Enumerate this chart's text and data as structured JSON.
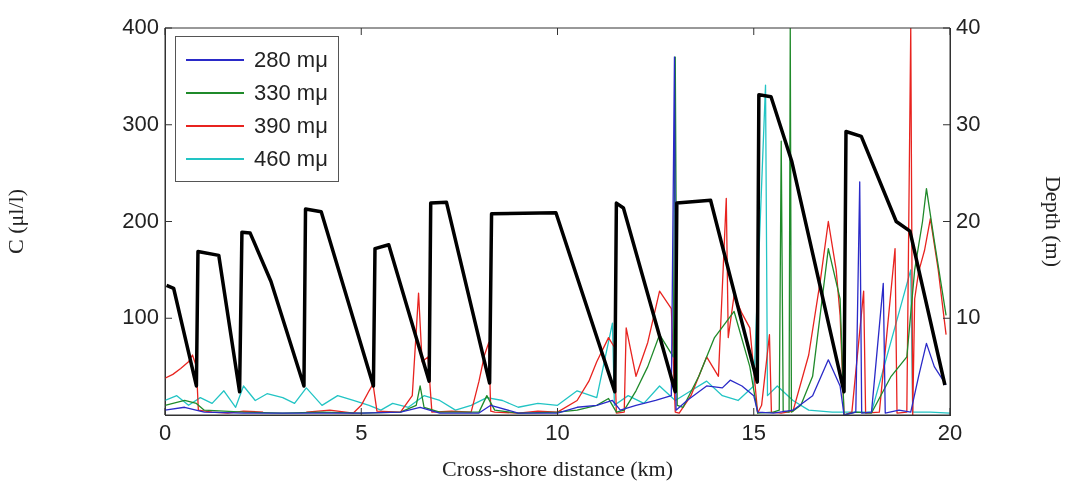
{
  "chart_data": {
    "type": "line",
    "xlabel": "Cross-shore distance (km)",
    "ylabel": "C (μl/l)",
    "y2label": "Depth (m)",
    "xlim": [
      0,
      20
    ],
    "xticks": [
      0,
      5,
      10,
      15,
      20
    ],
    "ylim": [
      0,
      400
    ],
    "yticks": [
      100,
      200,
      300,
      400
    ],
    "y2lim": [
      0,
      40
    ],
    "y2ticks": [
      10,
      20,
      30,
      40
    ],
    "legend": "top left",
    "marker": "none",
    "series": [
      {
        "name": "280 mμ",
        "color": "#2a2ac8",
        "x": [
          0,
          0.5,
          1.0,
          2.0,
          3.0,
          4.0,
          5.0,
          6.0,
          6.5,
          7.0,
          8.0,
          8.3,
          9.0,
          10.0,
          10.5,
          11.0,
          11.4,
          11.6,
          12.0,
          12.5,
          12.9,
          12.98,
          13.02,
          13.3,
          13.8,
          14.2,
          14.4,
          14.7,
          15.0,
          15.1,
          15.5,
          16.0,
          16.5,
          16.9,
          17.2,
          17.3,
          17.6,
          17.7,
          17.75,
          18.0,
          18.3,
          18.35,
          18.7,
          19.0,
          19.2,
          19.4,
          19.6,
          19.9
        ],
        "values": [
          5,
          8,
          3,
          2,
          2,
          2,
          2,
          3,
          8,
          2,
          2,
          10,
          2,
          2,
          8,
          10,
          15,
          5,
          10,
          15,
          20,
          370,
          5,
          15,
          30,
          28,
          36,
          30,
          20,
          3,
          2,
          5,
          20,
          57,
          30,
          0,
          3,
          241,
          2,
          3,
          136,
          2,
          5,
          3,
          40,
          74,
          50,
          31
        ]
      },
      {
        "name": "330 mμ",
        "color": "#1f8a2a",
        "x": [
          0,
          0.5,
          0.8,
          1.0,
          2.0,
          3.0,
          4.0,
          5.0,
          6.0,
          6.4,
          6.5,
          6.6,
          7.0,
          8.0,
          8.2,
          8.4,
          9.0,
          10.0,
          10.5,
          11.0,
          11.3,
          11.5,
          11.7,
          12.0,
          12.3,
          12.6,
          12.95,
          13.0,
          13.05,
          13.2,
          13.6,
          14.0,
          14.5,
          14.9,
          15.1,
          15.5,
          15.65,
          15.7,
          15.75,
          15.9,
          15.93,
          15.96,
          16.2,
          16.5,
          16.9,
          17.2,
          17.3,
          17.6,
          18.0,
          18.5,
          18.9,
          19.1,
          19.3,
          19.4,
          19.6,
          19.9
        ],
        "values": [
          10,
          15,
          12,
          5,
          3,
          2,
          3,
          2,
          3,
          10,
          30,
          8,
          3,
          3,
          20,
          5,
          2,
          3,
          5,
          10,
          17,
          3,
          5,
          25,
          50,
          83,
          60,
          370,
          10,
          8,
          40,
          80,
          107,
          50,
          2,
          3,
          5,
          283,
          4,
          3,
          400,
          3,
          10,
          40,
          172,
          120,
          0,
          3,
          2,
          40,
          60,
          150,
          200,
          234,
          180,
          103
        ]
      },
      {
        "name": "390 mμ",
        "color": "#e8231f",
        "x": [
          0,
          0.2,
          0.4,
          0.6,
          0.7,
          0.8,
          0.85,
          1.2,
          1.6,
          2.0,
          2.5,
          3.0,
          3.6,
          4.2,
          4.8,
          5.0,
          5.2,
          5.3,
          5.4,
          6.0,
          6.3,
          6.46,
          6.55,
          6.7,
          6.8,
          7.3,
          7.8,
          8.0,
          8.14,
          8.25,
          8.3,
          8.4,
          9.0,
          9.5,
          10.0,
          10.5,
          10.8,
          11.0,
          11.3,
          11.45,
          11.5,
          11.7,
          11.75,
          12.0,
          12.3,
          12.6,
          12.9,
          13.0,
          13.1,
          13.4,
          13.8,
          14.1,
          14.3,
          14.35,
          14.5,
          14.7,
          14.9,
          15.1,
          15.2,
          15.4,
          15.45,
          15.7,
          16.0,
          16.4,
          16.7,
          16.9,
          17.1,
          17.2,
          17.3,
          17.5,
          17.8,
          17.85,
          18.2,
          18.6,
          18.65,
          18.9,
          19.0,
          19.05,
          19.1,
          19.2,
          19.35,
          19.5,
          19.7,
          19.9
        ],
        "values": [
          38,
          42,
          48,
          55,
          62,
          50,
          5,
          3,
          2,
          4,
          3,
          null,
          3,
          5,
          2,
          10,
          25,
          32,
          4,
          3,
          20,
          126,
          55,
          60,
          3,
          4,
          3,
          35,
          62,
          75,
          4,
          3,
          2,
          4,
          3,
          15,
          35,
          55,
          80,
          70,
          2,
          3,
          90,
          40,
          75,
          128,
          110,
          3,
          2,
          20,
          60,
          40,
          224,
          80,
          124,
          105,
          90,
          2,
          10,
          83,
          3,
          2,
          4,
          62,
          140,
          200,
          150,
          103,
          0,
          3,
          128,
          2,
          3,
          172,
          2,
          3,
          400,
          0,
          120,
          148,
          170,
          203,
          150,
          83
        ]
      },
      {
        "name": "460 mμ",
        "color": "#22c4c4",
        "x": [
          0,
          0.3,
          0.6,
          0.9,
          1.2,
          1.5,
          1.8,
          2.0,
          2.3,
          2.6,
          3.0,
          3.3,
          3.6,
          4.0,
          4.4,
          4.8,
          5.2,
          5.5,
          5.8,
          6.2,
          6.6,
          7.0,
          7.4,
          7.8,
          8.2,
          8.6,
          9.0,
          9.5,
          10.0,
          10.5,
          11.0,
          11.4,
          11.45,
          11.8,
          12.2,
          12.6,
          13.0,
          13.4,
          13.8,
          14.2,
          14.6,
          15.0,
          15.3,
          15.35,
          15.6,
          16.0,
          16.4,
          17.0,
          18.0,
          19.0,
          19.05,
          19.5,
          20.0
        ],
        "values": [
          15,
          20,
          10,
          18,
          12,
          25,
          8,
          30,
          15,
          22,
          18,
          12,
          28,
          10,
          20,
          15,
          10,
          5,
          12,
          8,
          20,
          15,
          5,
          10,
          18,
          15,
          8,
          12,
          10,
          25,
          18,
          95,
          10,
          20,
          12,
          30,
          15,
          25,
          35,
          20,
          15,
          30,
          341,
          20,
          30,
          15,
          5,
          3,
          3,
          150,
          3,
          3,
          2
        ]
      },
      {
        "color": "#000000",
        "axis": "y2",
        "x": [
          0.04,
          0.22,
          0.8,
          0.84,
          1.37,
          1.9,
          1.96,
          2.17,
          2.7,
          3.54,
          3.58,
          3.98,
          5.31,
          5.35,
          5.7,
          6.73,
          6.77,
          7.17,
          8.27,
          8.32,
          9.96,
          11.46,
          11.5,
          11.68,
          13.0,
          13.04,
          13.9,
          15.09,
          15.13,
          15.44,
          15.97,
          17.3,
          17.35,
          17.74,
          18.63,
          18.98,
          19.87
        ],
        "values": [
          13.4,
          13.1,
          3.0,
          16.9,
          16.5,
          2.4,
          18.9,
          18.8,
          13.8,
          3.0,
          21.3,
          21.0,
          3.0,
          17.2,
          17.6,
          3.5,
          21.9,
          22.0,
          3.3,
          20.8,
          20.9,
          2.4,
          21.9,
          21.4,
          2.4,
          21.9,
          22.2,
          3.4,
          33.1,
          32.9,
          26.2,
          2.4,
          29.3,
          28.8,
          20.0,
          19.0,
          3.1
        ]
      }
    ]
  }
}
